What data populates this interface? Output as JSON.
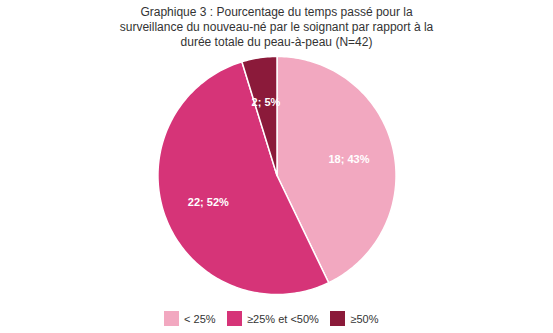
{
  "chart_data": {
    "type": "pie",
    "title": "Graphique 3 : Pourcentage du temps passé pour la\nsurveillance du nouveau-né par le soignant par rapport à la\ndurée totale du peau-à-peau (N=42)",
    "categories": [
      "< 25%",
      "≥25% et <50%",
      "≥50%"
    ],
    "values": [
      18,
      22,
      2
    ],
    "value_labels": [
      "18; 43%",
      "22; 52%",
      "2; 5%"
    ],
    "colors": [
      "#f2a8c0",
      "#d63478",
      "#8b1a3a"
    ],
    "data_labels": true,
    "legend": "bottom"
  }
}
